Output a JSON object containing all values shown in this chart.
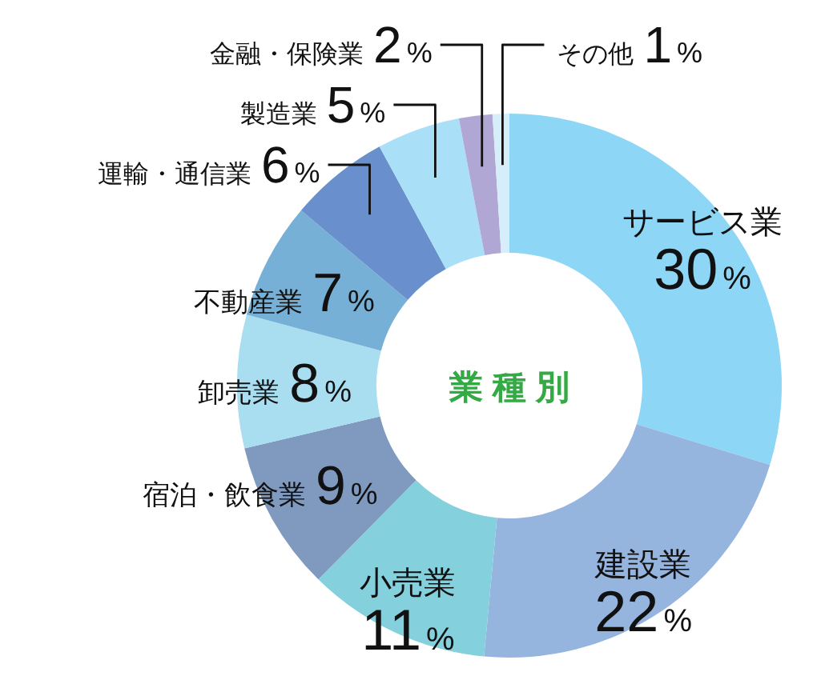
{
  "chart_data": {
    "type": "donut",
    "title": "業種別",
    "categories": [
      "サービス業",
      "建設業",
      "小売業",
      "宿泊・飲食業",
      "卸売業",
      "不動産業",
      "運輸・通信業",
      "製造業",
      "金融・保険業",
      "その他"
    ],
    "values": [
      30,
      22,
      11,
      9,
      8,
      7,
      6,
      5,
      2,
      1
    ],
    "colors": [
      "#8ed6f5",
      "#95b4de",
      "#84d0dc",
      "#7f99bf",
      "#a9def0",
      "#77b0d6",
      "#6990cc",
      "#a9dff7",
      "#b0a7d4",
      "#d5eefa"
    ],
    "value_labels": [
      "30%",
      "22%",
      "11%",
      "9%",
      "8%",
      "7%",
      "6%",
      "5%",
      "2%",
      "1%"
    ]
  }
}
